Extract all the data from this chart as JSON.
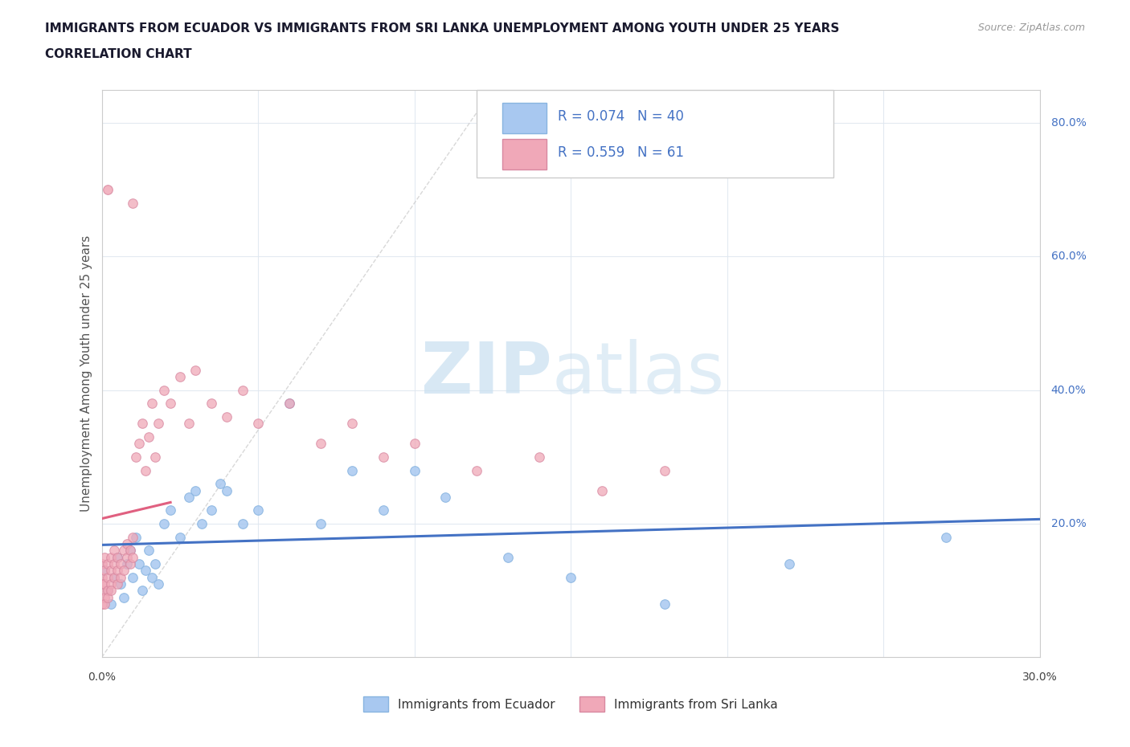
{
  "title_line1": "IMMIGRANTS FROM ECUADOR VS IMMIGRANTS FROM SRI LANKA UNEMPLOYMENT AMONG YOUTH UNDER 25 YEARS",
  "title_line2": "CORRELATION CHART",
  "source_text": "Source: ZipAtlas.com",
  "ylabel": "Unemployment Among Youth under 25 years",
  "xlim": [
    0.0,
    0.3
  ],
  "ylim": [
    0.0,
    0.85
  ],
  "y_ticks_right": [
    0.0,
    0.2,
    0.4,
    0.6,
    0.8
  ],
  "y_tick_labels_right": [
    "",
    "20.0%",
    "40.0%",
    "60.0%",
    "80.0%"
  ],
  "legend_ecuador_R": "0.074",
  "legend_ecuador_N": "40",
  "legend_srilanka_R": "0.559",
  "legend_srilanka_N": "61",
  "ecuador_color": "#a8c8f0",
  "srilanka_color": "#f0a8b8",
  "ecuador_line_color": "#4472c4",
  "srilanka_line_color": "#e06080",
  "ecuador_x": [
    0.001,
    0.002,
    0.003,
    0.004,
    0.005,
    0.006,
    0.007,
    0.008,
    0.009,
    0.01,
    0.011,
    0.012,
    0.013,
    0.014,
    0.015,
    0.016,
    0.017,
    0.018,
    0.02,
    0.022,
    0.025,
    0.028,
    0.03,
    0.032,
    0.035,
    0.038,
    0.04,
    0.045,
    0.05,
    0.06,
    0.07,
    0.08,
    0.09,
    0.1,
    0.11,
    0.13,
    0.15,
    0.18,
    0.22,
    0.27
  ],
  "ecuador_y": [
    0.13,
    0.1,
    0.08,
    0.12,
    0.15,
    0.11,
    0.09,
    0.14,
    0.16,
    0.12,
    0.18,
    0.14,
    0.1,
    0.13,
    0.16,
    0.12,
    0.14,
    0.11,
    0.2,
    0.22,
    0.18,
    0.24,
    0.25,
    0.2,
    0.22,
    0.26,
    0.25,
    0.2,
    0.22,
    0.38,
    0.2,
    0.28,
    0.22,
    0.28,
    0.24,
    0.15,
    0.12,
    0.08,
    0.14,
    0.18
  ],
  "srilanka_x": [
    0.0,
    0.0,
    0.0,
    0.0,
    0.0,
    0.001,
    0.001,
    0.001,
    0.001,
    0.001,
    0.002,
    0.002,
    0.002,
    0.002,
    0.003,
    0.003,
    0.003,
    0.003,
    0.004,
    0.004,
    0.004,
    0.005,
    0.005,
    0.005,
    0.006,
    0.006,
    0.007,
    0.007,
    0.008,
    0.008,
    0.009,
    0.009,
    0.01,
    0.01,
    0.011,
    0.012,
    0.013,
    0.014,
    0.015,
    0.016,
    0.017,
    0.018,
    0.02,
    0.022,
    0.025,
    0.028,
    0.03,
    0.035,
    0.04,
    0.045,
    0.05,
    0.06,
    0.07,
    0.08,
    0.09,
    0.1,
    0.12,
    0.14,
    0.16,
    0.18,
    0.01
  ],
  "srilanka_y": [
    0.1,
    0.12,
    0.08,
    0.11,
    0.14,
    0.09,
    0.13,
    0.11,
    0.15,
    0.08,
    0.12,
    0.1,
    0.14,
    0.09,
    0.11,
    0.13,
    0.1,
    0.15,
    0.14,
    0.12,
    0.16,
    0.13,
    0.11,
    0.15,
    0.14,
    0.12,
    0.16,
    0.13,
    0.15,
    0.17,
    0.14,
    0.16,
    0.18,
    0.15,
    0.3,
    0.32,
    0.35,
    0.28,
    0.33,
    0.38,
    0.3,
    0.35,
    0.4,
    0.38,
    0.42,
    0.35,
    0.43,
    0.38,
    0.36,
    0.4,
    0.35,
    0.38,
    0.32,
    0.35,
    0.3,
    0.32,
    0.28,
    0.3,
    0.25,
    0.28,
    0.68
  ],
  "srilanka_outlier_x": [
    0.002
  ],
  "srilanka_outlier_y": [
    0.7
  ],
  "ref_line_x": [
    0.0,
    0.125
  ],
  "ref_line_y": [
    0.0,
    0.85
  ]
}
